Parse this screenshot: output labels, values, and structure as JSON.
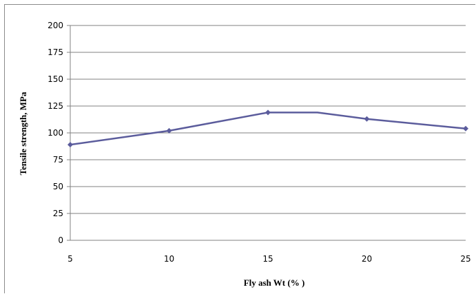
{
  "chart_data": {
    "type": "line",
    "title": "",
    "xlabel": "Fly ash Wt (% )",
    "ylabel": "Tensile strength, MPa",
    "x": [
      5,
      10,
      15,
      17.5,
      20,
      25
    ],
    "series": [
      {
        "values": [
          89,
          102,
          119,
          119,
          113,
          104
        ],
        "color": "#5b5c9c",
        "markers": [
          true,
          true,
          true,
          false,
          true,
          true
        ]
      }
    ],
    "xticks": [
      "5",
      "10",
      "15",
      "20",
      "25"
    ],
    "yticks": [
      "0",
      "25",
      "50",
      "75",
      "100",
      "125",
      "150",
      "175",
      "200"
    ],
    "xlim": [
      5,
      25
    ],
    "ylim": [
      0,
      200
    ],
    "grid": "horizontal",
    "legend": "none",
    "colors": {
      "gridline": "#808080",
      "frame": "#8a8a8a",
      "line": "#5b5c9c"
    }
  }
}
